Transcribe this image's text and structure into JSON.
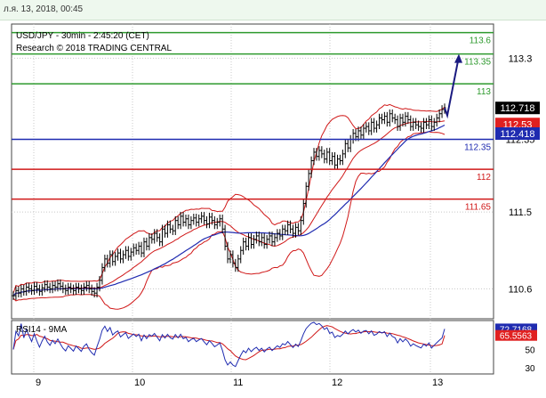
{
  "header": {
    "timestamp": "л.я. 13, 2018, 00:45"
  },
  "chart_data": {
    "type": "line",
    "title": "USD/JPY - 30min - 2:45:20 (CET)",
    "subtitle": "Research © 2018 TRADING CENTRAL",
    "x_ticks": [
      "9",
      "10",
      "11",
      "12",
      "13"
    ],
    "y_ticks": [
      "113.3",
      "112.35",
      "111.5",
      "110.6"
    ],
    "ylim": [
      110.25,
      113.7
    ],
    "levels": [
      {
        "label": "113.6",
        "value": 113.6,
        "color": "#2e9a2e",
        "label_color": "#2e9a2e"
      },
      {
        "label": "113.35",
        "value": 113.35,
        "color": "#2e9a2e",
        "label_color": "#2e9a2e"
      },
      {
        "label": "113",
        "value": 113.0,
        "color": "#2e9a2e",
        "label_color": "#2e9a2e"
      },
      {
        "label": "112.35",
        "value": 112.35,
        "color": "#1f2bb0",
        "label_color": "#1f2bb0"
      },
      {
        "label": "112",
        "value": 112.0,
        "color": "#d01818",
        "label_color": "#d01818"
      },
      {
        "label": "111.65",
        "value": 111.65,
        "color": "#d01818",
        "label_color": "#d01818"
      }
    ],
    "price_tags": [
      {
        "label": "112.718",
        "value": 112.718,
        "bg": "#000000",
        "fg": "#ffffff"
      },
      {
        "label": "112.53",
        "value": 112.53,
        "bg": "#e02020",
        "fg": "#ffffff"
      },
      {
        "label": "112.418",
        "value": 112.418,
        "bg": "#1f2bb0",
        "fg": "#ffffff"
      }
    ],
    "close": [
      110.52,
      110.58,
      110.55,
      110.6,
      110.57,
      110.62,
      110.6,
      110.58,
      110.63,
      110.6,
      110.57,
      110.61,
      110.65,
      110.62,
      110.6,
      110.64,
      110.62,
      110.66,
      110.63,
      110.6,
      110.58,
      110.62,
      110.6,
      110.58,
      110.62,
      110.6,
      110.58,
      110.62,
      110.64,
      110.6,
      110.57,
      110.55,
      110.62,
      110.7,
      110.85,
      110.95,
      110.9,
      111.0,
      110.92,
      110.98,
      111.02,
      110.95,
      111.0,
      111.05,
      110.98,
      111.03,
      111.08,
      111.05,
      111.1,
      111.02,
      111.15,
      111.1,
      111.2,
      111.18,
      111.25,
      111.2,
      111.15,
      111.3,
      111.25,
      111.35,
      111.3,
      111.28,
      111.4,
      111.35,
      111.45,
      111.38,
      111.42,
      111.35,
      111.4,
      111.43,
      111.38,
      111.42,
      111.45,
      111.4,
      111.36,
      111.44,
      111.4,
      111.35,
      111.38,
      111.42,
      111.3,
      111.1,
      110.95,
      111.0,
      110.9,
      110.85,
      110.95,
      111.05,
      111.15,
      111.1,
      111.2,
      111.12,
      111.18,
      111.22,
      111.15,
      111.2,
      111.12,
      111.18,
      111.22,
      111.15,
      111.2,
      111.25,
      111.22,
      111.3,
      111.28,
      111.35,
      111.3,
      111.25,
      111.32,
      111.28,
      111.4,
      111.6,
      111.8,
      111.95,
      112.1,
      112.2,
      112.15,
      112.22,
      112.18,
      112.12,
      112.2,
      112.1,
      112.15,
      112.05,
      112.12,
      112.1,
      112.18,
      112.3,
      112.25,
      112.35,
      112.42,
      112.38,
      112.45,
      112.4,
      112.48,
      112.5,
      112.45,
      112.55,
      112.48,
      112.52,
      112.6,
      112.58,
      112.62,
      112.55,
      112.65,
      112.6,
      112.58,
      112.5,
      112.6,
      112.55,
      112.62,
      112.58,
      112.5,
      112.55,
      112.52,
      112.5,
      112.48,
      112.55,
      112.52,
      112.58,
      112.5,
      112.55,
      112.6,
      112.65,
      112.7,
      112.72
    ],
    "forecast": [
      112.718,
      112.63,
      113.35
    ],
    "rsi": {
      "title": "RSI14 - 9MA",
      "y_ticks": [
        "50",
        "30"
      ],
      "ylim": [
        25,
        80
      ],
      "value_label": "72.7168",
      "value": 72.7168,
      "ma_label": "65.5563",
      "ma_value": 65.5563
    }
  }
}
